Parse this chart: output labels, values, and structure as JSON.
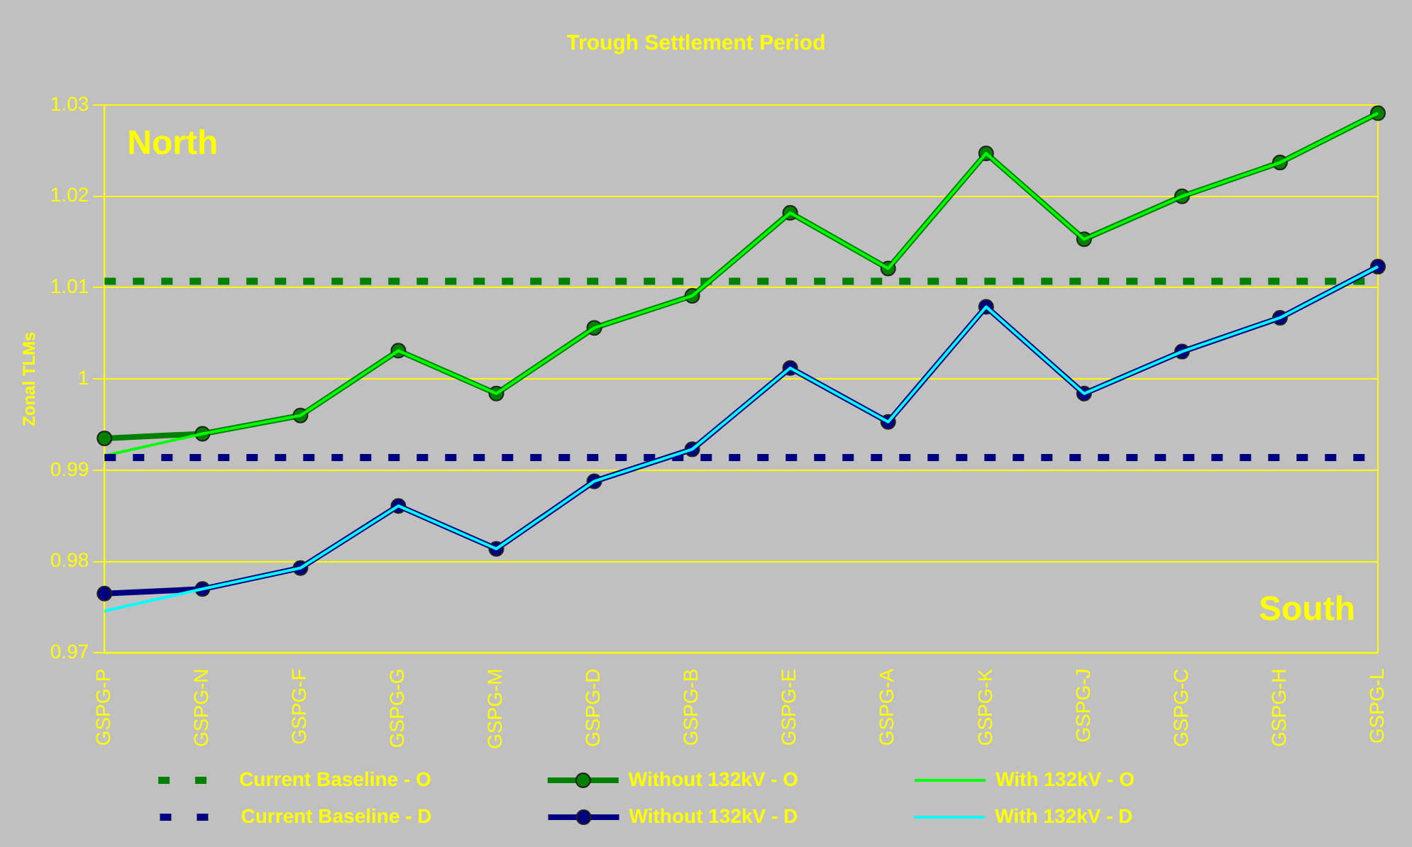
{
  "chart_data": {
    "type": "line",
    "title": "Trough Settlement Period",
    "ylabel": "Zonal TLMs",
    "categories": [
      "GSPG-P",
      "GSPG-N",
      "GSPG-F",
      "GSPG-G",
      "GSPG-M",
      "GSPG-D",
      "GSPG-B",
      "GSPG-E",
      "GSPG-A",
      "GSPG-K",
      "GSPG-J",
      "GSPG-C",
      "GSPG-H",
      "GSPG-L"
    ],
    "ylim": [
      0.97,
      1.03
    ],
    "yticks": [
      0.97,
      0.98,
      0.99,
      1,
      1.01,
      1.02,
      1.03
    ],
    "grid": "y",
    "legend": "bottom",
    "annotations": [
      "North",
      "South"
    ],
    "series": [
      {
        "name": "Current Baseline - O",
        "color": "#008000",
        "line_style": "dashed",
        "marker": "none",
        "values": [
          1.0107,
          1.0107,
          1.0107,
          1.0107,
          1.0107,
          1.0107,
          1.0107,
          1.0107,
          1.0107,
          1.0107,
          1.0107,
          1.0107,
          1.0107,
          1.0107
        ]
      },
      {
        "name": "Without 132kV - O",
        "color": "#008000",
        "line_style": "solid",
        "marker": "circle",
        "values": [
          0.9935,
          0.994,
          0.996,
          1.0031,
          0.9984,
          1.0056,
          1.0091,
          1.0182,
          1.0121,
          1.0247,
          1.0153,
          1.02,
          1.0237,
          1.0291
        ]
      },
      {
        "name": "With 132kV - O",
        "color": "#00ff00",
        "line_style": "solid",
        "marker": "none",
        "values": [
          0.9916,
          0.994,
          0.996,
          1.0031,
          0.9984,
          1.0056,
          1.0091,
          1.0182,
          1.0121,
          1.0247,
          1.0153,
          1.02,
          1.0237,
          1.0291
        ]
      },
      {
        "name": "Current Baseline - D",
        "color": "#000080",
        "line_style": "dashed",
        "marker": "none",
        "values": [
          0.9914,
          0.9914,
          0.9914,
          0.9914,
          0.9914,
          0.9914,
          0.9914,
          0.9914,
          0.9914,
          0.9914,
          0.9914,
          0.9914,
          0.9914,
          0.9914
        ]
      },
      {
        "name": "Without 132kV - D",
        "color": "#000080",
        "line_style": "solid",
        "marker": "circle",
        "values": [
          0.9765,
          0.977,
          0.9793,
          0.9861,
          0.9814,
          0.9888,
          0.9923,
          1.0012,
          0.9953,
          1.0079,
          0.9984,
          1.003,
          1.0067,
          1.0123
        ]
      },
      {
        "name": "With 132kV - D",
        "color": "#00ffff",
        "line_style": "solid",
        "marker": "none",
        "values": [
          0.9746,
          0.977,
          0.9793,
          0.9861,
          0.9814,
          0.9888,
          0.9923,
          1.0012,
          0.9953,
          1.0079,
          0.9984,
          1.003,
          1.0067,
          1.0123
        ]
      }
    ]
  }
}
